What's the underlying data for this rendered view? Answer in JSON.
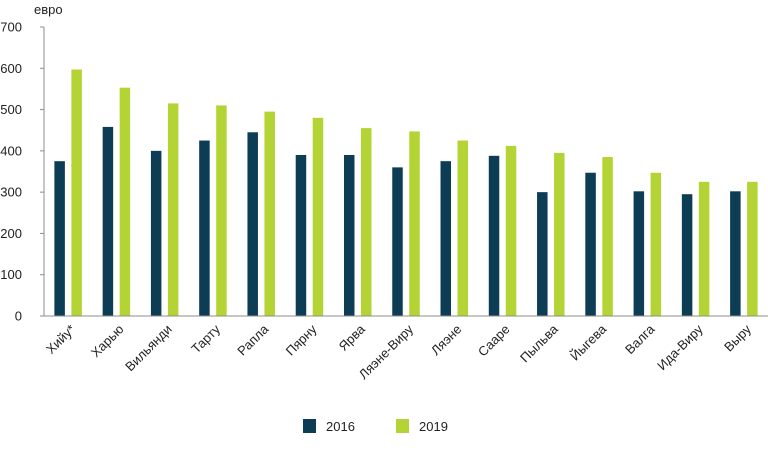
{
  "chart_data": {
    "type": "bar",
    "ylabel": "евро",
    "ylim": [
      0,
      700
    ],
    "yticks": [
      0,
      100,
      200,
      300,
      400,
      500,
      600,
      700
    ],
    "grid": false,
    "legend_position": "bottom",
    "categories": [
      "Хийу*",
      "Харью",
      "Вильянди",
      "Тарту",
      "Рапла",
      "Пярну",
      "Ярва",
      "Ляэне-Виру",
      "Ляэне",
      "Сааре",
      "Пыльва",
      "Йыгева",
      "Валга",
      "Ида-Виру",
      "Выру"
    ],
    "series": [
      {
        "name": "2016",
        "color": "#0d3c55",
        "values": [
          375,
          458,
          400,
          425,
          445,
          390,
          390,
          360,
          375,
          388,
          300,
          347,
          302,
          295,
          302
        ]
      },
      {
        "name": "2019",
        "color": "#b4d334",
        "values": [
          597,
          553,
          515,
          510,
          495,
          480,
          455,
          447,
          425,
          412,
          395,
          385,
          347,
          325,
          325
        ]
      }
    ]
  }
}
